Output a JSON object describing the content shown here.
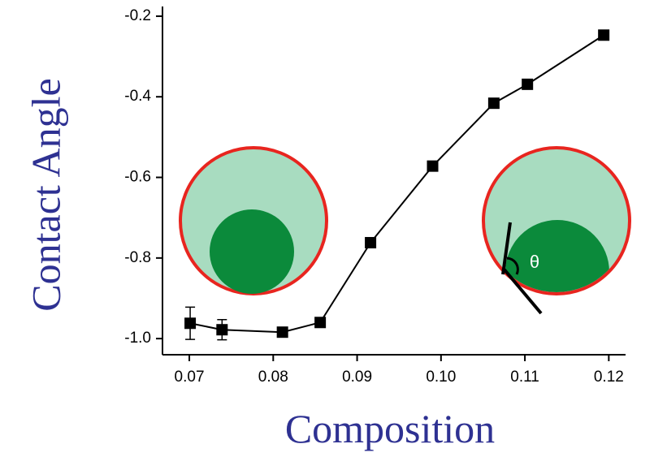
{
  "chart_data": {
    "type": "line",
    "xlabel": "Composition",
    "ylabel": "Contact Angle",
    "annotation": "θ",
    "x": [
      0.0701,
      0.0739,
      0.0811,
      0.0856,
      0.0916,
      0.099,
      0.1063,
      0.1103,
      0.1194
    ],
    "series": [
      {
        "color": "#000000",
        "values": [
          -0.962,
          -0.978,
          -0.984,
          -0.96,
          -0.762,
          -0.572,
          -0.416,
          -0.369,
          -0.247
        ],
        "errors": [
          0.04,
          0.025,
          0.012,
          null,
          null,
          null,
          null,
          null,
          null
        ]
      }
    ],
    "xlim": [
      0.0668,
      0.122
    ],
    "ylim": [
      -1.04,
      -0.18
    ],
    "xticks": [
      0.07,
      0.08,
      0.09,
      {
        "value": 0.1,
        "label": "0.10"
      },
      0.11,
      0.12
    ],
    "yticks": [
      -0.2,
      -0.4,
      -0.6,
      -0.8,
      {
        "value": -1,
        "label": "-1.0"
      }
    ]
  }
}
